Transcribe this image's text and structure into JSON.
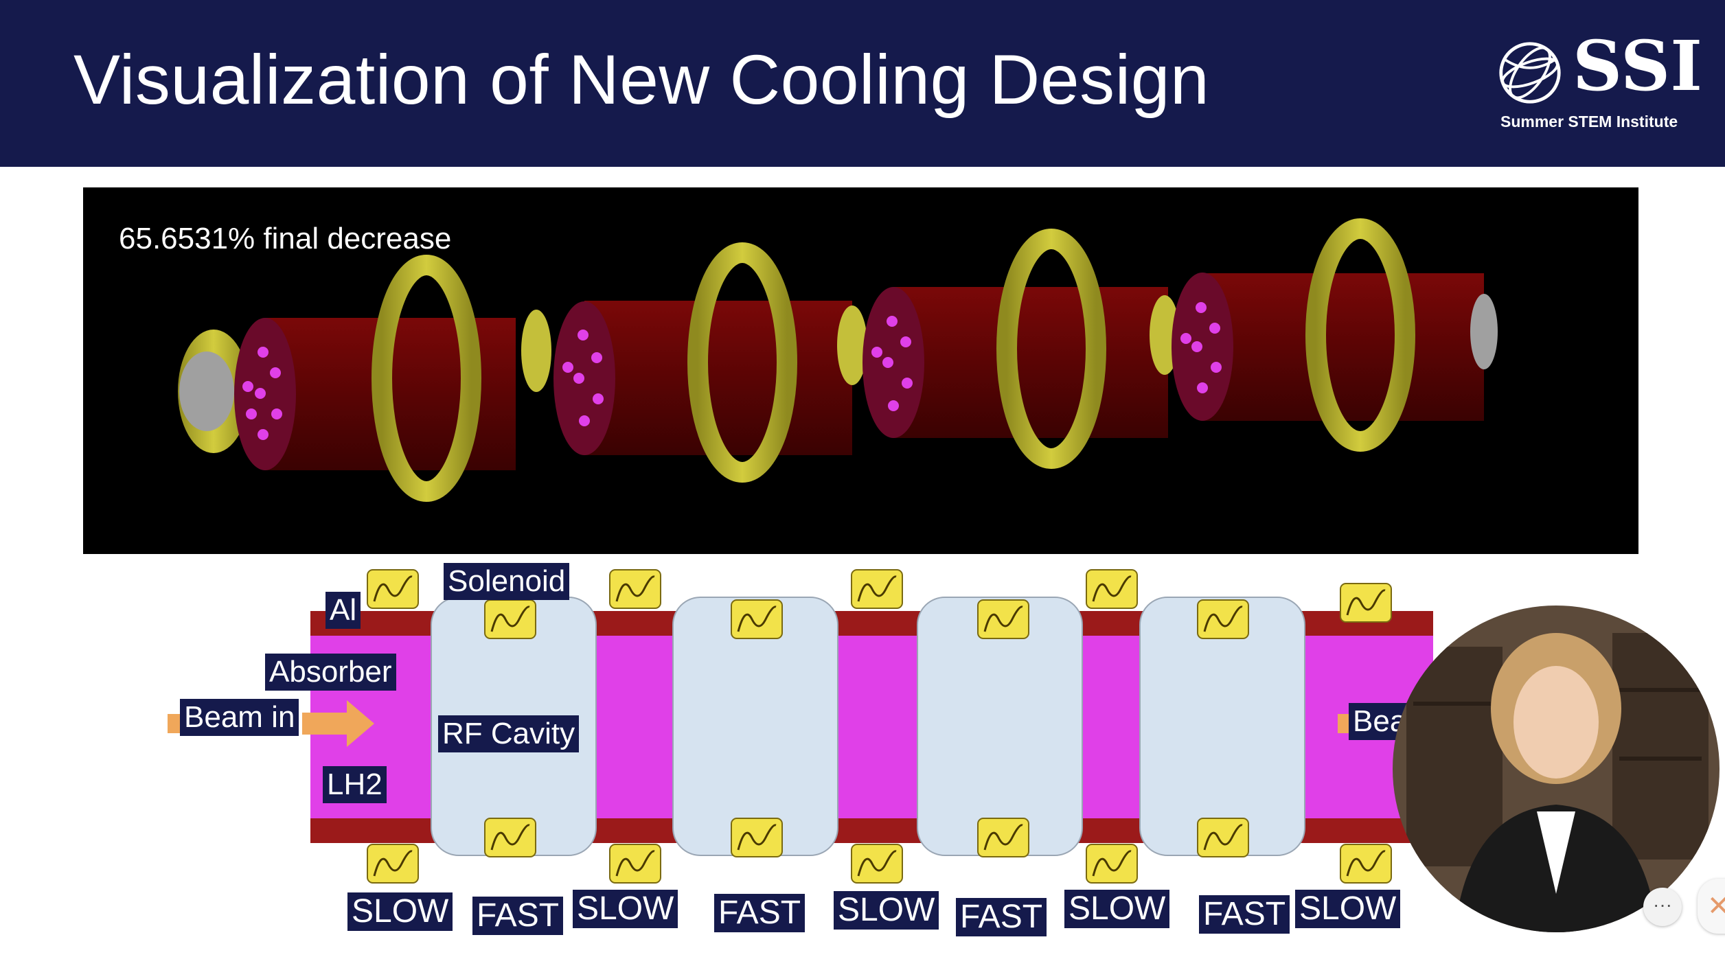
{
  "slide": {
    "title": "Visualization of New Cooling Design",
    "logo": {
      "mark": "SSI",
      "subtitle": "Summer STEM Institute",
      "icon": "globe-icon"
    }
  },
  "simulation": {
    "label": "65.6531% final decrease"
  },
  "diagram": {
    "labels": {
      "al": "Al",
      "absorber": "Absorber",
      "beam_in": "Beam in",
      "lh2": "LH2",
      "solenoid": "Solenoid",
      "rf_cavity": "RF Cavity",
      "beam_out": "Bea"
    },
    "speeds": [
      "SLOW",
      "FAST",
      "SLOW",
      "FAST",
      "SLOW",
      "FAST",
      "SLOW",
      "FAST",
      "SLOW"
    ]
  },
  "controls": {
    "more_icon": "more-icon",
    "close_icon": "close-icon",
    "more_glyph": "···",
    "close_glyph": "✕"
  },
  "colors": {
    "header": "#151a4c",
    "absorber": "#e040e8",
    "aluminum": "#9b1a1a",
    "cavity": "#d6e3f0",
    "solenoid": "#f2e24a",
    "beam_arrow": "#f0a75a"
  }
}
